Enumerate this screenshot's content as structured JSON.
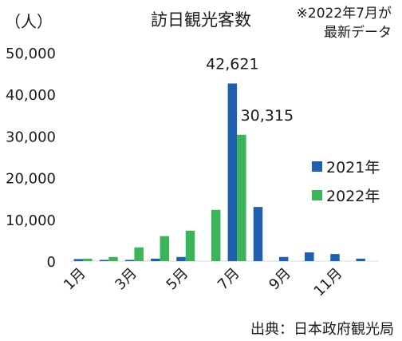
{
  "chart_data": {
    "type": "bar",
    "title": "訪日観光客数",
    "note_line1": "※2022年7月が",
    "note_line2": "最新データ",
    "ylabel": "（人）",
    "source": "出典：日本政府観光局",
    "ylim": [
      0,
      50000
    ],
    "yticks": [
      0,
      10000,
      20000,
      30000,
      40000,
      50000
    ],
    "ytick_labels": [
      "0",
      "10,000",
      "20,000",
      "30,000",
      "40,000",
      "50,000"
    ],
    "categories": [
      "1月",
      "2月",
      "3月",
      "4月",
      "5月",
      "6月",
      "7月",
      "8月",
      "9月",
      "10月",
      "11月",
      "12月"
    ],
    "xtick_labels": [
      "1月",
      "",
      "3月",
      "",
      "5月",
      "",
      "7月",
      "",
      "9月",
      "",
      "11月",
      ""
    ],
    "legend_position": "right",
    "grid": false,
    "series": [
      {
        "name": "2021年",
        "color": "#1f5fb0",
        "values": [
          500,
          300,
          300,
          600,
          1000,
          null,
          42621,
          13000,
          1000,
          2100,
          1700,
          600
        ]
      },
      {
        "name": "2022年",
        "color": "#3cb55a",
        "values": [
          600,
          1000,
          3300,
          6000,
          7300,
          12300,
          30315,
          null,
          null,
          null,
          null,
          null
        ]
      }
    ],
    "data_labels": [
      {
        "series": 0,
        "index": 6,
        "text": "42,621"
      },
      {
        "series": 1,
        "index": 6,
        "text": "30,315"
      }
    ]
  }
}
